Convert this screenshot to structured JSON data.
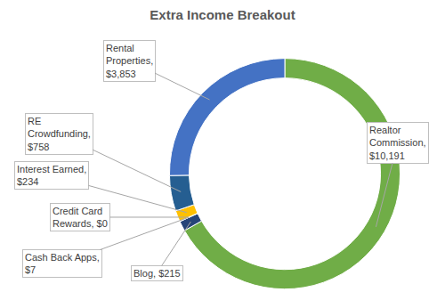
{
  "chart_data": {
    "type": "pie",
    "title": "Extra Income Breakout",
    "categories": [
      "Realtor Commission",
      "Blog",
      "Cash Back Apps",
      "Credit Card Rewards",
      "Interest Earned",
      "RE Crowdfunding",
      "Rental Properties"
    ],
    "values": [
      10191,
      215,
      7,
      0,
      234,
      758,
      3853
    ],
    "value_labels": [
      "Realtor Commission, $10,191",
      "Blog,  $215",
      "Cash Back Apps, $7",
      "Credit Card Rewards, $0",
      "Interest Earned, $234",
      "RE Crowdfunding, $758",
      "Rental Properties, $3,853"
    ],
    "colors": [
      "#70ad47",
      "#264478",
      "#7f7f7f",
      "#a5a5a5",
      "#ffc000",
      "#255e91",
      "#4472c4"
    ],
    "data_labels": true
  }
}
